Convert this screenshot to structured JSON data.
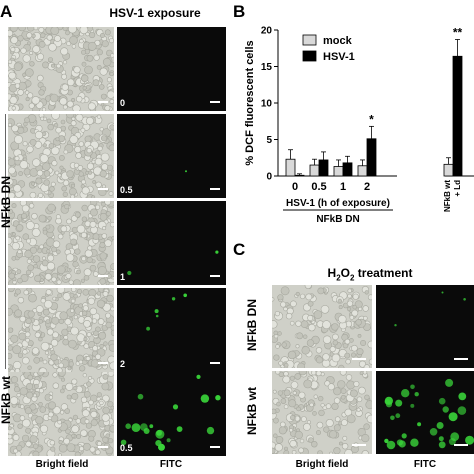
{
  "panels": {
    "a": "A",
    "b": "B",
    "c": "C"
  },
  "panel_a": {
    "title": "HSV-1 exposure",
    "timepoints": [
      "0",
      "0.5",
      "1",
      "2",
      "0.5"
    ],
    "group_labels": [
      "NFkB DN",
      "NFkB wt"
    ],
    "columns": [
      "Bright field",
      "FITC"
    ]
  },
  "panel_c": {
    "title_main": "H",
    "title_sub": "2",
    "title_main2": "O",
    "title_sub2": "2",
    "title_rest": " treatment",
    "row_labels": [
      "NFkB DN",
      "NFkB wt"
    ],
    "columns": [
      "Bright field",
      "FITC"
    ]
  },
  "colors": {
    "mock": "#d9d9d9",
    "hsv1": "#000000",
    "fitc": "#39d439",
    "bf": "#cfd0c8"
  },
  "chart_data": {
    "type": "bar",
    "ylabel": "% DCF fluorescent cells",
    "ylim": [
      0,
      20
    ],
    "yticks": [
      0,
      5,
      10,
      15,
      20
    ],
    "categories": [
      "0",
      "0.5",
      "1",
      "2",
      "NFkB wt"
    ],
    "category_extra": [
      "",
      "",
      "",
      "",
      "+ Ld"
    ],
    "xlabel": "HSV-1 (h of exposure)",
    "xgroup_label": "NFkB DN",
    "legend": "top-left",
    "series": [
      {
        "name": "mock",
        "values": [
          2.3,
          1.5,
          1.3,
          1.4,
          1.6
        ],
        "errors": [
          1.3,
          0.8,
          0.9,
          0.8,
          0.9
        ]
      },
      {
        "name": "HSV-1",
        "values": [
          0.1,
          2.2,
          1.8,
          5.1,
          16.4
        ],
        "errors": [
          0.2,
          1.1,
          0.9,
          1.7,
          2.3
        ]
      }
    ],
    "annotations": [
      "",
      "",
      "",
      "*",
      "**"
    ]
  }
}
